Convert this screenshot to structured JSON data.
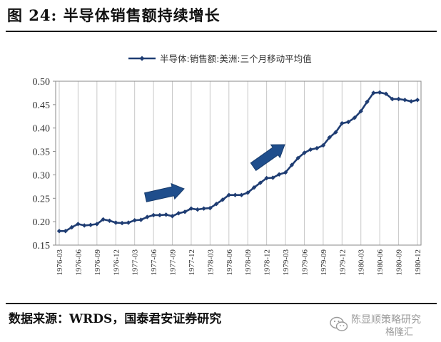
{
  "figure": {
    "title": "图 24:  半导体销售额持续增长",
    "source": "数据来源：WRDS，国泰君安证券研究",
    "watermark_line1": "陈显顺策略研究",
    "watermark_line2": "格隆汇",
    "watermark_icon": "wechat-icon"
  },
  "chart_data": {
    "type": "line",
    "title": "",
    "xlabel": "",
    "ylabel": "",
    "ylim": [
      0.15,
      0.5
    ],
    "yticks": [
      "0.15",
      "0.20",
      "0.25",
      "0.30",
      "0.35",
      "0.40",
      "0.45",
      "0.50"
    ],
    "x": [
      "1976-03",
      "1976-04",
      "1976-05",
      "1976-06",
      "1976-07",
      "1976-08",
      "1976-09",
      "1976-10",
      "1976-11",
      "1976-12",
      "1977-01",
      "1977-02",
      "1977-03",
      "1977-04",
      "1977-05",
      "1977-06",
      "1977-07",
      "1977-08",
      "1977-09",
      "1977-10",
      "1977-11",
      "1977-12",
      "1978-01",
      "1978-02",
      "1978-03",
      "1978-04",
      "1978-05",
      "1978-06",
      "1978-07",
      "1978-08",
      "1978-09",
      "1978-10",
      "1978-11",
      "1978-12",
      "1979-01",
      "1979-02",
      "1979-03",
      "1979-04",
      "1979-05",
      "1979-06",
      "1979-07",
      "1979-08",
      "1979-09",
      "1979-10",
      "1979-11",
      "1979-12",
      "1980-01",
      "1980-02",
      "1980-03",
      "1980-04",
      "1980-05",
      "1980-06",
      "1980-07",
      "1980-08",
      "1980-09",
      "1980-10",
      "1980-11",
      "1980-12"
    ],
    "xtick_labels": [
      "1976-03",
      "1976-06",
      "1976-09",
      "1976-12",
      "1977-03",
      "1977-06",
      "1977-09",
      "1977-12",
      "1978-03",
      "1978-06",
      "1978-09",
      "1978-12",
      "1979-03",
      "1979-06",
      "1979-09",
      "1979-12",
      "1980-03",
      "1980-06",
      "1980-09",
      "1980-12"
    ],
    "series": [
      {
        "name": "半导体:销售额:美洲:三个月移动平均值",
        "color": "#1f3d73",
        "values": [
          0.18,
          0.18,
          0.188,
          0.195,
          0.192,
          0.193,
          0.195,
          0.205,
          0.202,
          0.198,
          0.197,
          0.198,
          0.203,
          0.204,
          0.21,
          0.214,
          0.214,
          0.215,
          0.212,
          0.218,
          0.221,
          0.228,
          0.226,
          0.228,
          0.229,
          0.238,
          0.247,
          0.257,
          0.257,
          0.257,
          0.262,
          0.273,
          0.283,
          0.293,
          0.294,
          0.301,
          0.305,
          0.321,
          0.336,
          0.347,
          0.354,
          0.357,
          0.363,
          0.38,
          0.391,
          0.41,
          0.413,
          0.422,
          0.436,
          0.456,
          0.475,
          0.476,
          0.473,
          0.462,
          0.462,
          0.46,
          0.457,
          0.46
        ]
      }
    ],
    "annotations": [
      {
        "type": "arrow",
        "from": "1977-05",
        "to": "1977-12",
        "color": "#1f4e8c"
      },
      {
        "type": "arrow",
        "from": "1978-12",
        "to": "1979-04",
        "color": "#1f4e8c"
      }
    ],
    "legend": "top-center",
    "grid": "vertical-only"
  }
}
